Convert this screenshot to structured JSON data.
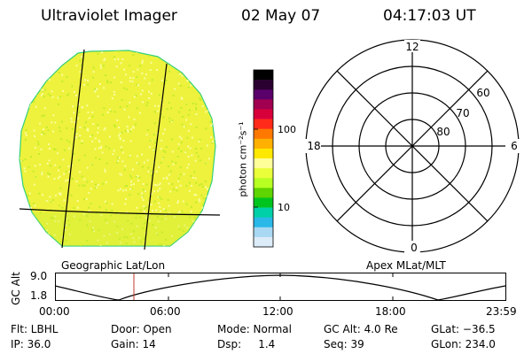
{
  "header": {
    "instrument": "Ultraviolet Imager",
    "date": "02 May 07",
    "time": "04:17:03 UT"
  },
  "colorbar": {
    "unit_label": "photon cm⁻²s⁻¹",
    "ticks": [
      "100",
      "10"
    ],
    "colors": [
      "#000000",
      "#2a0030",
      "#5a006a",
      "#a0004f",
      "#d8003a",
      "#ff2a1a",
      "#ff7800",
      "#ffb000",
      "#ffe800",
      "#ffff9a",
      "#eaff3a",
      "#b8ff22",
      "#5ed400",
      "#00c41e",
      "#00d0a8",
      "#2ab8e8",
      "#a9d8f2",
      "#dcecf8"
    ]
  },
  "polar_grid": {
    "mlt_labels": [
      "12",
      "18",
      "6",
      "0"
    ],
    "lat_labels": [
      "60",
      "70",
      "80"
    ]
  },
  "captions": {
    "left": "Geographic Lat/Lon",
    "right": "Apex MLat/MLT"
  },
  "altitude_plot": {
    "ylabel": "GC Alt",
    "yticks": [
      "9.0",
      "1.8"
    ],
    "xticks": [
      "00:00",
      "06:00",
      "12:00",
      "18:00",
      "23:59"
    ],
    "marker_time": "04:17"
  },
  "info": {
    "flt": "Flt: LBHL",
    "ip": "IP: 36.0",
    "door": "Door: Open",
    "gain": "Gain: 14",
    "mode": "Mode: Normal",
    "dsp": "Dsp:     1.4",
    "gcalt": "GC Alt: 4.0 Re",
    "seq": "Seq: 39",
    "glat": "GLat: −36.5",
    "glon": "GLon: 234.0"
  },
  "colors": {
    "disk_base": "#eef23c",
    "disk_speckle_light": "#fbfda0",
    "disk_speckle_green": "#c2ec2a",
    "disk_rim": "#34d07a",
    "marker": "#c0392b"
  }
}
